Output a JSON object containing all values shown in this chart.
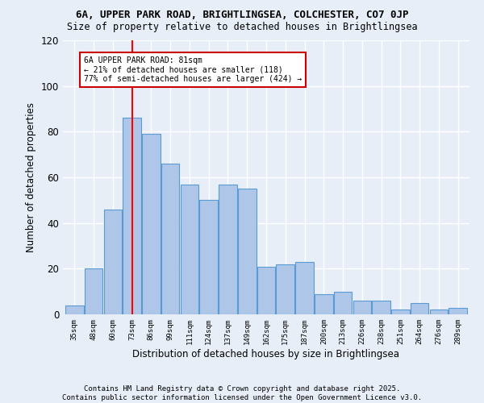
{
  "title": "6A, UPPER PARK ROAD, BRIGHTLINGSEA, COLCHESTER, CO7 0JP",
  "subtitle": "Size of property relative to detached houses in Brightlingsea",
  "xlabel": "Distribution of detached houses by size in Brightlingsea",
  "ylabel": "Number of detached properties",
  "bar_color": "#aec6e8",
  "bar_edge_color": "#5b9bd5",
  "bg_color": "#e8eef8",
  "grid_color": "#ffffff",
  "red_line_x": 3,
  "categories": [
    "35sqm",
    "48sqm",
    "60sqm",
    "73sqm",
    "86sqm",
    "99sqm",
    "111sqm",
    "124sqm",
    "137sqm",
    "149sqm",
    "162sqm",
    "175sqm",
    "187sqm",
    "200sqm",
    "213sqm",
    "226sqm",
    "238sqm",
    "251sqm",
    "264sqm",
    "276sqm",
    "289sqm"
  ],
  "values": [
    4,
    20,
    46,
    86,
    79,
    66,
    57,
    50,
    57,
    55,
    21,
    22,
    23,
    9,
    10,
    6,
    6,
    2,
    5,
    2,
    3
  ],
  "ylim": [
    0,
    120
  ],
  "annotation_text": "6A UPPER PARK ROAD: 81sqm\n← 21% of detached houses are smaller (118)\n77% of semi-detached houses are larger (424) →",
  "annotation_box_color": "#ffffff",
  "annotation_box_edge": "#cc0000",
  "footnote": "Contains HM Land Registry data © Crown copyright and database right 2025.\nContains public sector information licensed under the Open Government Licence v3.0.",
  "title_fontsize": 9,
  "subtitle_fontsize": 8.5,
  "footnote_fontsize": 6.5
}
